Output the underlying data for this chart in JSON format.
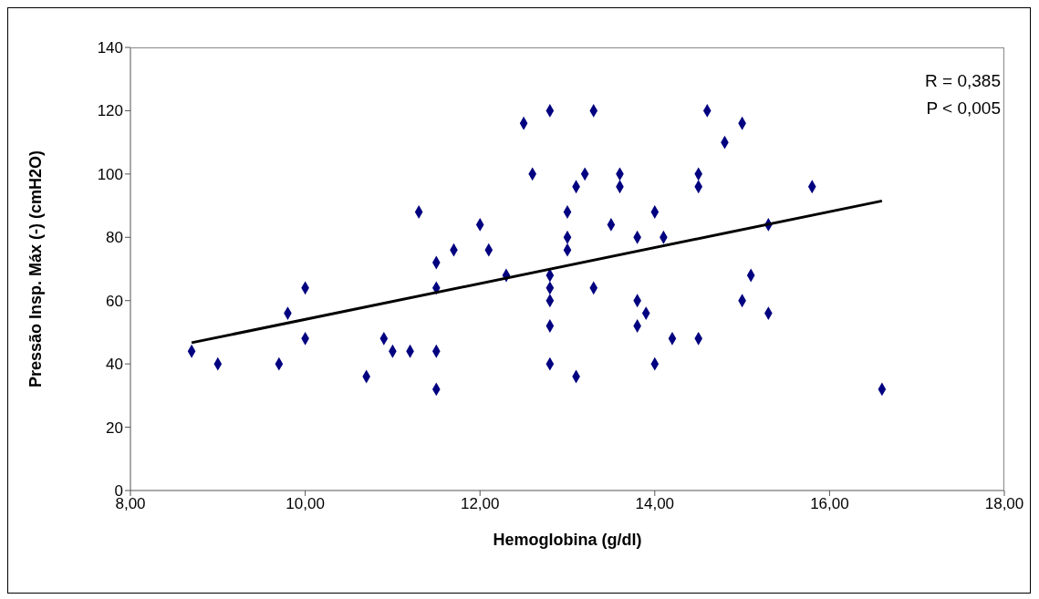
{
  "chart_data": {
    "type": "scatter",
    "xlabel": "Hemoglobina (g/dl)",
    "ylabel": "Pressão Insp. Máx (-) (cmH2O)",
    "xlim": [
      8,
      18
    ],
    "xticks": [
      {
        "value": 8,
        "label": "8,00"
      },
      {
        "value": 10,
        "label": "10,00"
      },
      {
        "value": 12,
        "label": "12,00"
      },
      {
        "value": 14,
        "label": "14,00"
      },
      {
        "value": 16,
        "label": "16,00"
      },
      {
        "value": 18,
        "label": "18,00"
      }
    ],
    "ylim": [
      0,
      140
    ],
    "yticks": [
      0,
      20,
      40,
      60,
      80,
      100,
      120,
      140
    ],
    "grid": false,
    "marker": "diamond",
    "annotations": [
      "R = 0,385",
      "P < 0,005"
    ],
    "series": [
      {
        "type": "scatter",
        "color": "#000080",
        "x": [
          8.7,
          9.0,
          9.7,
          9.8,
          10.0,
          10.0,
          10.7,
          10.9,
          11.0,
          11.2,
          11.3,
          11.5,
          11.5,
          11.5,
          11.5,
          11.7,
          12.0,
          12.1,
          12.3,
          12.5,
          12.6,
          12.8,
          12.8,
          12.8,
          12.8,
          12.8,
          12.8,
          13.0,
          13.0,
          13.0,
          13.1,
          13.1,
          13.2,
          13.3,
          13.3,
          13.5,
          13.6,
          13.6,
          13.8,
          13.8,
          13.8,
          13.9,
          14.0,
          14.0,
          14.1,
          14.2,
          14.5,
          14.5,
          14.5,
          14.6,
          14.8,
          15.0,
          15.0,
          15.1,
          15.3,
          15.3,
          15.8,
          16.6
        ],
        "values": [
          44,
          40,
          40,
          56,
          64,
          48,
          36,
          48,
          44,
          44,
          88,
          72,
          64,
          44,
          32,
          76,
          84,
          76,
          68,
          116,
          100,
          120,
          68,
          64,
          60,
          52,
          40,
          88,
          80,
          76,
          96,
          36,
          100,
          120,
          64,
          84,
          100,
          96,
          80,
          60,
          52,
          56,
          88,
          40,
          80,
          48,
          100,
          96,
          48,
          120,
          110,
          116,
          60,
          68,
          84,
          56,
          96,
          32
        ]
      },
      {
        "type": "line",
        "color": "#000000",
        "marker": "none",
        "line_style": "solid",
        "x": [
          8.7,
          16.6
        ],
        "values": [
          46.7,
          91.5
        ]
      }
    ]
  }
}
